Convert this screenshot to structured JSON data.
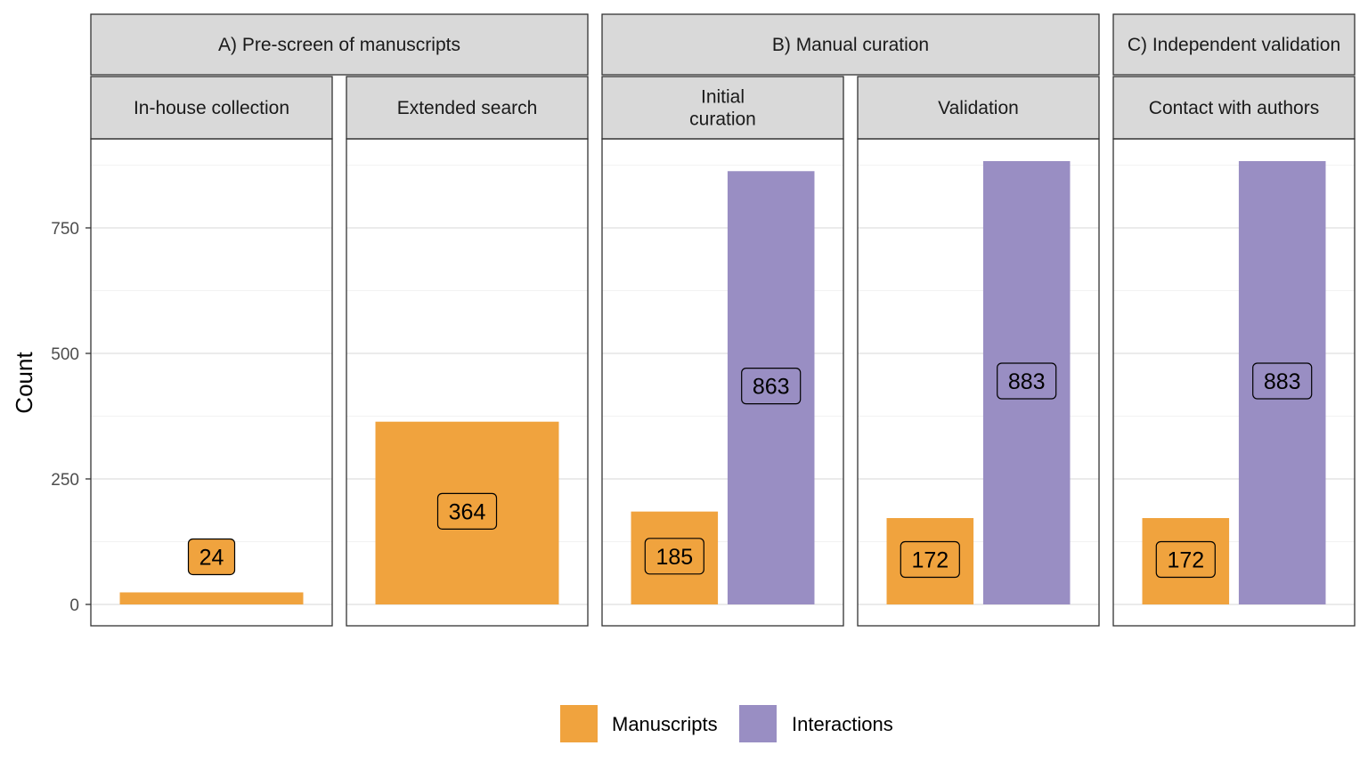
{
  "chart_data": {
    "type": "bar",
    "ylabel": "Count",
    "ylim": [
      0,
      920
    ],
    "y_ticks": [
      0,
      250,
      500,
      750
    ],
    "grid": true,
    "legend_position": "bottom",
    "colors": {
      "Manuscripts": "#F0A33E",
      "Interactions": "#998EC3"
    },
    "series": [
      {
        "name": "Manuscripts"
      },
      {
        "name": "Interactions"
      }
    ],
    "groups": [
      {
        "label": "A) Pre-screen of manuscripts",
        "panels": [
          {
            "label": "In-house collection",
            "bars": [
              {
                "series": "Manuscripts",
                "value": 24
              }
            ]
          },
          {
            "label": "Extended search",
            "bars": [
              {
                "series": "Manuscripts",
                "value": 364
              }
            ]
          }
        ]
      },
      {
        "label": "B) Manual curation",
        "panels": [
          {
            "label": "Initial\ncuration",
            "bars": [
              {
                "series": "Manuscripts",
                "value": 185
              },
              {
                "series": "Interactions",
                "value": 863
              }
            ]
          },
          {
            "label": "Validation",
            "bars": [
              {
                "series": "Manuscripts",
                "value": 172
              },
              {
                "series": "Interactions",
                "value": 883
              }
            ]
          }
        ]
      },
      {
        "label": "C) Independent validation",
        "panels": [
          {
            "label": "Contact with authors",
            "bars": [
              {
                "series": "Manuscripts",
                "value": 172
              },
              {
                "series": "Interactions",
                "value": 883
              }
            ]
          }
        ]
      }
    ]
  }
}
